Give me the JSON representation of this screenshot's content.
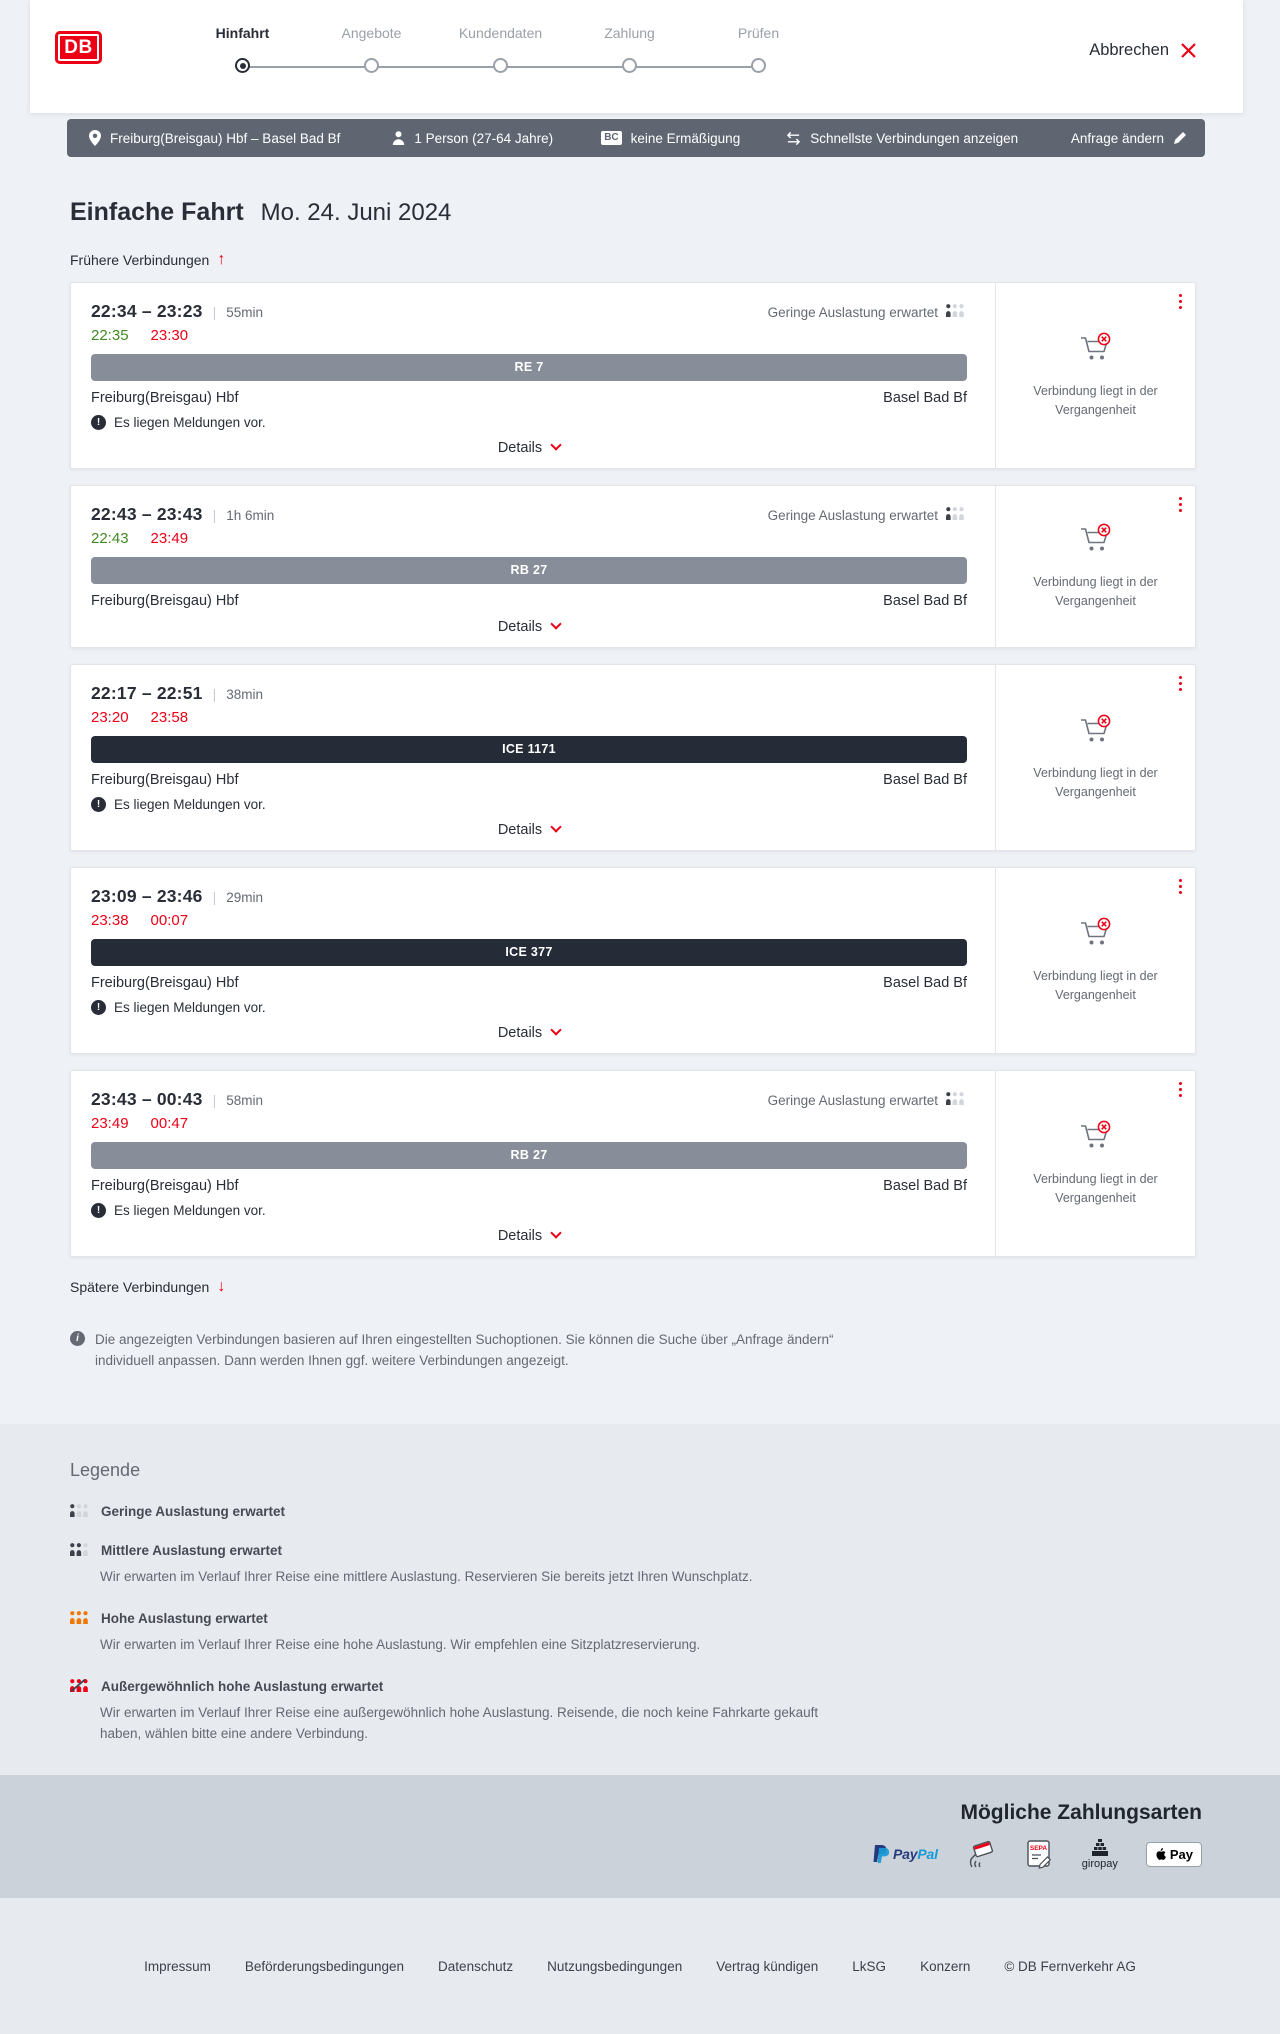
{
  "header": {
    "logo_text": "DB",
    "steps": [
      {
        "label": "Hinfahrt",
        "active": true
      },
      {
        "label": "Angebote",
        "active": false
      },
      {
        "label": "Kundendaten",
        "active": false
      },
      {
        "label": "Zahlung",
        "active": false
      },
      {
        "label": "Prüfen",
        "active": false
      }
    ],
    "cancel_label": "Abbrechen"
  },
  "summary_bar": {
    "route": "Freiburg(Breisgau) Hbf – Basel Bad Bf",
    "traveller": "1 Person (27-64 Jahre)",
    "bahncard_badge": "BC",
    "discount": "keine Ermäßigung",
    "fastest_connections": "Schnellste Verbindungen anzeigen",
    "change_request": "Anfrage ändern"
  },
  "results": {
    "title": "Einfache Fahrt",
    "date": "Mo. 24. Juni 2024",
    "earlier_label": "Frühere Verbindungen",
    "later_label": "Spätere Verbindungen",
    "details_label": "Details",
    "past_note": "Verbindung liegt in der Vergangenheit",
    "info_note": "Die angezeigten Verbindungen basieren auf Ihren eingestellten Suchoptionen. Sie können die Suche über „Anfrage ändern“ individuell anpassen. Dann werden Ihnen ggf. weitere Verbindungen angezeigt.",
    "connections": [
      {
        "time_range": "22:34 – 23:23",
        "duration": "55min",
        "realtime_departure": {
          "time": "22:35",
          "status": "ontime"
        },
        "realtime_arrival": {
          "time": "23:30",
          "status": "delayed"
        },
        "train": "RE 7",
        "train_type": "regional",
        "from": "Freiburg(Breisgau) Hbf",
        "to": "Basel Bad Bf",
        "message": "Es liegen Meldungen vor.",
        "occupancy": "Geringe Auslastung erwartet"
      },
      {
        "time_range": "22:43 – 23:43",
        "duration": "1h 6min",
        "realtime_departure": {
          "time": "22:43",
          "status": "ontime"
        },
        "realtime_arrival": {
          "time": "23:49",
          "status": "delayed"
        },
        "train": "RB 27",
        "train_type": "regional",
        "from": "Freiburg(Breisgau) Hbf",
        "to": "Basel Bad Bf",
        "message": null,
        "occupancy": "Geringe Auslastung erwartet"
      },
      {
        "time_range": "22:17 – 22:51",
        "duration": "38min",
        "realtime_departure": {
          "time": "23:20",
          "status": "delayed"
        },
        "realtime_arrival": {
          "time": "23:58",
          "status": "delayed"
        },
        "train": "ICE 1171",
        "train_type": "ice",
        "from": "Freiburg(Breisgau) Hbf",
        "to": "Basel Bad Bf",
        "message": "Es liegen Meldungen vor.",
        "occupancy": null
      },
      {
        "time_range": "23:09 – 23:46",
        "duration": "29min",
        "realtime_departure": {
          "time": "23:38",
          "status": "delayed"
        },
        "realtime_arrival": {
          "time": "00:07",
          "status": "delayed"
        },
        "train": "ICE 377",
        "train_type": "ice",
        "from": "Freiburg(Breisgau) Hbf",
        "to": "Basel Bad Bf",
        "message": "Es liegen Meldungen vor.",
        "occupancy": null
      },
      {
        "time_range": "23:43 – 00:43",
        "duration": "58min",
        "realtime_departure": {
          "time": "23:49",
          "status": "delayed"
        },
        "realtime_arrival": {
          "time": "00:47",
          "status": "delayed"
        },
        "train": "RB 27",
        "train_type": "regional",
        "from": "Freiburg(Breisgau) Hbf",
        "to": "Basel Bad Bf",
        "message": "Es liegen Meldungen vor.",
        "occupancy": "Geringe Auslastung erwartet"
      }
    ]
  },
  "legend": {
    "title": "Legende",
    "items": [
      {
        "level": "low",
        "label": "Geringe Auslastung erwartet",
        "desc": null
      },
      {
        "level": "medium",
        "label": "Mittlere Auslastung erwartet",
        "desc": "Wir erwarten im Verlauf Ihrer Reise eine mittlere Auslastung. Reservieren Sie bereits jetzt Ihren Wunschplatz."
      },
      {
        "level": "high",
        "label": "Hohe Auslastung erwartet",
        "desc": "Wir erwarten im Verlauf Ihrer Reise eine hohe Auslastung. Wir empfehlen eine Sitzplatzreservierung."
      },
      {
        "level": "very_high",
        "label": "Außergewöhnlich hohe Auslastung erwartet",
        "desc": "Wir erwarten im Verlauf Ihrer Reise eine außergewöhnlich hohe Auslastung. Reisende, die noch keine Fahrkarte gekauft haben, wählen bitte eine andere Verbindung."
      }
    ]
  },
  "payment": {
    "title": "Mögliche Zahlungsarten",
    "methods": [
      "PayPal",
      "Kreditkarte",
      "SEPA-Lastschrift",
      "giropay",
      "Apple Pay"
    ],
    "logo_texts": {
      "paypal_dark": "Pay",
      "paypal_light": "Pal",
      "sepa": "SEPA",
      "giropay": "giropay",
      "applepay": "Pay"
    }
  },
  "footer": {
    "links": [
      "Impressum",
      "Beförderungsbedingungen",
      "Datenschutz",
      "Nutzungsbedingungen",
      "Vertrag kündigen",
      "LkSG",
      "Konzern"
    ],
    "copyright": "© DB Fernverkehr AG"
  },
  "colors": {
    "brand_red": "#ec0016",
    "ontime_green": "#428a23",
    "delay_red": "#ec0016",
    "summary_bar_gray": "#5f6672",
    "regional_band": "#888e99",
    "ice_band": "#252c38",
    "page_bg": "#eef1f5",
    "legend_bg": "#e7eaef",
    "payment_bg": "#ccd2d9"
  }
}
